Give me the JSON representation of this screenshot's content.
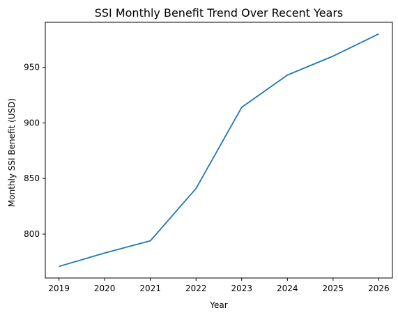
{
  "chart_data": {
    "type": "line",
    "title": "SSI Monthly Benefit Trend Over Recent Years",
    "xlabel": "Year",
    "ylabel": "Monthly SSI Benefit (USD)",
    "x": [
      2019,
      2020,
      2021,
      2022,
      2023,
      2024,
      2025,
      2026
    ],
    "series": [
      {
        "values": [
          771,
          783,
          794,
          841,
          914,
          943,
          960,
          980
        ],
        "color": "#1f77b4"
      }
    ],
    "x_ticks": [
      "2019",
      "2020",
      "2021",
      "2022",
      "2023",
      "2024",
      "2025",
      "2026"
    ],
    "y_ticks": [
      800,
      850,
      900,
      950
    ],
    "xlim": [
      2018.7,
      2026.3
    ],
    "ylim": [
      760.55,
      990.45
    ],
    "grid": false,
    "legend": "none"
  }
}
